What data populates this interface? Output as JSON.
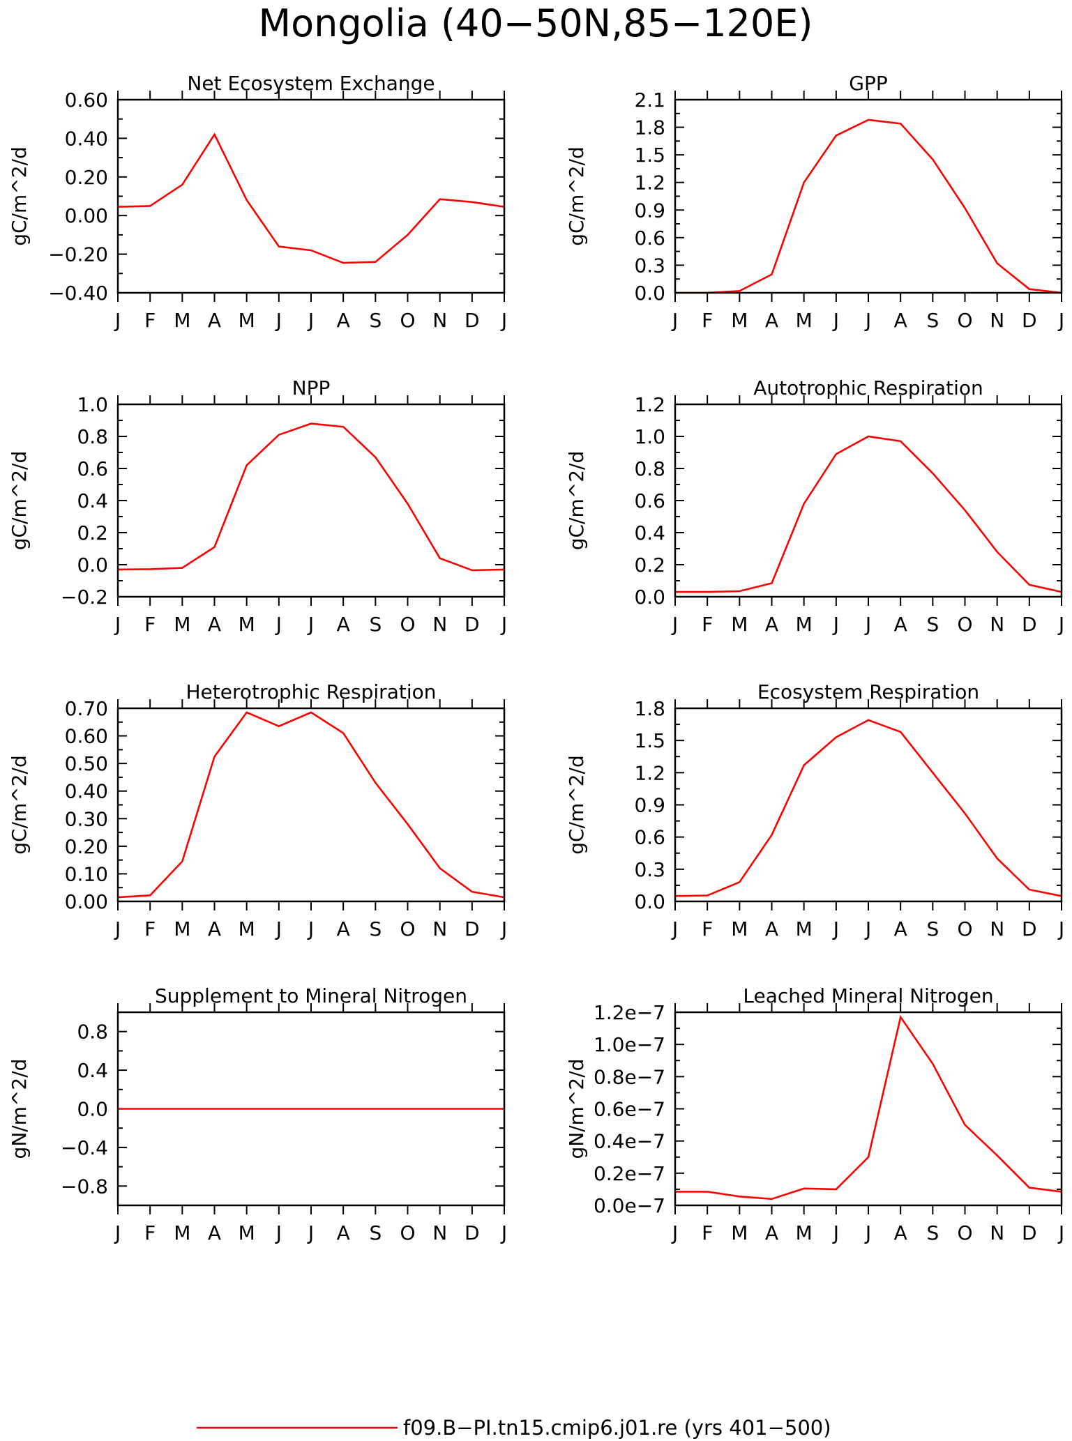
{
  "figure": {
    "title": "Mongolia (40−50N,85−120E)",
    "legend_label": "f09.B−PI.tn15.cmip6.j01.re (yrs 401−500)",
    "line_color": "#ff0000"
  },
  "chart_data": [
    {
      "type": "line",
      "title": "Net Ecosystem Exchange",
      "ylabel": "gC/m^2/d",
      "xlabel": "",
      "x_ticks": [
        "J",
        "F",
        "M",
        "A",
        "M",
        "J",
        "J",
        "A",
        "S",
        "O",
        "N",
        "D",
        "J"
      ],
      "ylim": [
        -0.4,
        0.6
      ],
      "y_ticks": [
        -0.4,
        -0.2,
        0.0,
        0.2,
        0.4,
        0.6
      ],
      "y_tick_labels": [
        "−0.40",
        "−0.20",
        "0.00",
        "0.20",
        "0.40",
        "0.60"
      ],
      "grid": false,
      "series": [
        {
          "values": [
            0.045,
            0.05,
            0.16,
            0.42,
            0.08,
            -0.16,
            -0.18,
            -0.245,
            -0.24,
            -0.1,
            0.085,
            0.07,
            0.045
          ]
        }
      ]
    },
    {
      "type": "line",
      "title": "GPP",
      "ylabel": "gC/m^2/d",
      "xlabel": "",
      "x_ticks": [
        "J",
        "F",
        "M",
        "A",
        "M",
        "J",
        "J",
        "A",
        "S",
        "O",
        "N",
        "D",
        "J"
      ],
      "ylim": [
        0.0,
        2.1
      ],
      "y_ticks": [
        0.0,
        0.3,
        0.6,
        0.9,
        1.2,
        1.5,
        1.8,
        2.1
      ],
      "y_tick_labels": [
        "0.0",
        "0.3",
        "0.6",
        "0.9",
        "1.2",
        "1.5",
        "1.8",
        "2.1"
      ],
      "grid": false,
      "series": [
        {
          "values": [
            0.0,
            0.0,
            0.02,
            0.2,
            1.2,
            1.71,
            1.88,
            1.84,
            1.45,
            0.92,
            0.32,
            0.04,
            0.0
          ]
        }
      ]
    },
    {
      "type": "line",
      "title": "NPP",
      "ylabel": "gC/m^2/d",
      "xlabel": "",
      "x_ticks": [
        "J",
        "F",
        "M",
        "A",
        "M",
        "J",
        "J",
        "A",
        "S",
        "O",
        "N",
        "D",
        "J"
      ],
      "ylim": [
        -0.2,
        1.0
      ],
      "y_ticks": [
        -0.2,
        0.0,
        0.2,
        0.4,
        0.6,
        0.8,
        1.0
      ],
      "y_tick_labels": [
        "−0.2",
        "0.0",
        "0.2",
        "0.4",
        "0.6",
        "0.8",
        "1.0"
      ],
      "grid": false,
      "series": [
        {
          "values": [
            -0.03,
            -0.028,
            -0.02,
            0.11,
            0.62,
            0.81,
            0.88,
            0.86,
            0.67,
            0.38,
            0.04,
            -0.035,
            -0.03
          ]
        }
      ]
    },
    {
      "type": "line",
      "title": "Autotrophic Respiration",
      "ylabel": "gC/m^2/d",
      "xlabel": "",
      "x_ticks": [
        "J",
        "F",
        "M",
        "A",
        "M",
        "J",
        "J",
        "A",
        "S",
        "O",
        "N",
        "D",
        "J"
      ],
      "ylim": [
        0.0,
        1.2
      ],
      "y_ticks": [
        0.0,
        0.2,
        0.4,
        0.6,
        0.8,
        1.0,
        1.2
      ],
      "y_tick_labels": [
        "0.0",
        "0.2",
        "0.4",
        "0.6",
        "0.8",
        "1.0",
        "1.2"
      ],
      "grid": false,
      "series": [
        {
          "values": [
            0.03,
            0.03,
            0.035,
            0.085,
            0.58,
            0.89,
            1.0,
            0.97,
            0.77,
            0.54,
            0.28,
            0.075,
            0.03
          ]
        }
      ]
    },
    {
      "type": "line",
      "title": "Heterotrophic Respiration",
      "ylabel": "gC/m^2/d",
      "xlabel": "",
      "x_ticks": [
        "J",
        "F",
        "M",
        "A",
        "M",
        "J",
        "J",
        "A",
        "S",
        "O",
        "N",
        "D",
        "J"
      ],
      "ylim": [
        0.0,
        0.7
      ],
      "y_ticks": [
        0.0,
        0.1,
        0.2,
        0.3,
        0.4,
        0.5,
        0.6,
        0.7
      ],
      "y_tick_labels": [
        "0.00",
        "0.10",
        "0.20",
        "0.30",
        "0.40",
        "0.50",
        "0.60",
        "0.70"
      ],
      "grid": false,
      "series": [
        {
          "values": [
            0.015,
            0.022,
            0.145,
            0.525,
            0.685,
            0.635,
            0.685,
            0.61,
            0.43,
            0.28,
            0.12,
            0.035,
            0.015
          ]
        }
      ]
    },
    {
      "type": "line",
      "title": "Ecosystem Respiration",
      "ylabel": "gC/m^2/d",
      "xlabel": "",
      "x_ticks": [
        "J",
        "F",
        "M",
        "A",
        "M",
        "J",
        "J",
        "A",
        "S",
        "O",
        "N",
        "D",
        "J"
      ],
      "ylim": [
        0.0,
        1.8
      ],
      "y_ticks": [
        0.0,
        0.3,
        0.6,
        0.9,
        1.2,
        1.5,
        1.8
      ],
      "y_tick_labels": [
        "0.0",
        "0.3",
        "0.6",
        "0.9",
        "1.2",
        "1.5",
        "1.8"
      ],
      "grid": false,
      "series": [
        {
          "values": [
            0.05,
            0.055,
            0.18,
            0.62,
            1.27,
            1.53,
            1.69,
            1.58,
            1.2,
            0.82,
            0.4,
            0.11,
            0.05
          ]
        }
      ]
    },
    {
      "type": "line",
      "title": "Supplement to Mineral Nitrogen",
      "ylabel": "gN/m^2/d",
      "xlabel": "",
      "x_ticks": [
        "J",
        "F",
        "M",
        "A",
        "M",
        "J",
        "J",
        "A",
        "S",
        "O",
        "N",
        "D",
        "J"
      ],
      "ylim": [
        -1.0,
        1.0
      ],
      "y_ticks": [
        -0.8,
        -0.4,
        0.0,
        0.4,
        0.8
      ],
      "y_tick_labels": [
        "−0.8",
        "−0.4",
        "0.0",
        "0.4",
        "0.8"
      ],
      "grid": false,
      "series": [
        {
          "values": [
            0,
            0,
            0,
            0,
            0,
            0,
            0,
            0,
            0,
            0,
            0,
            0,
            0
          ]
        }
      ]
    },
    {
      "type": "line",
      "title": "Leached Mineral Nitrogen",
      "ylabel": "gN/m^2/d",
      "xlabel": "",
      "x_ticks": [
        "J",
        "F",
        "M",
        "A",
        "M",
        "J",
        "J",
        "A",
        "S",
        "O",
        "N",
        "D",
        "J"
      ],
      "ylim": [
        0.0,
        1.2e-07
      ],
      "y_ticks": [
        0.0,
        2e-08,
        4e-08,
        6e-08,
        8e-08,
        1e-07,
        1.2e-07
      ],
      "y_tick_labels": [
        "0.0e−7",
        "0.2e−7",
        "0.4e−7",
        "0.6e−7",
        "0.8e−7",
        "1.0e−7",
        "1.2e−7"
      ],
      "grid": false,
      "series": [
        {
          "values": [
            8.5e-09,
            8.5e-09,
            5.5e-09,
            4e-09,
            1.05e-08,
            1e-08,
            3e-08,
            1.17e-07,
            8.8e-08,
            5e-08,
            3.1e-08,
            1.1e-08,
            8.5e-09
          ]
        }
      ]
    }
  ]
}
